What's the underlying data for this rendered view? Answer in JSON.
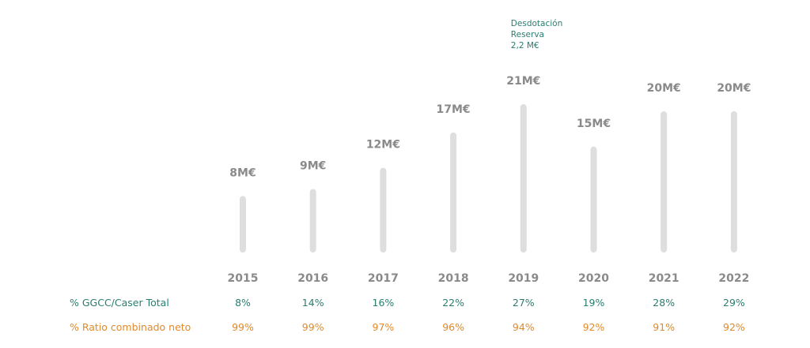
{
  "chart_data": {
    "type": "bar",
    "categories": [
      "2015",
      "2016",
      "2017",
      "2018",
      "2019",
      "2020",
      "2021",
      "2022"
    ],
    "values": [
      8,
      9,
      12,
      17,
      21,
      15,
      20,
      20
    ],
    "value_labels": [
      "8M€",
      "9M€",
      "12M€",
      "17M€",
      "21M€",
      "15M€",
      "20M€",
      "20M€"
    ],
    "unit": "M€",
    "ylim": [
      0,
      21
    ],
    "grid": false,
    "bar_color": "#dedede",
    "annotation": {
      "category": "2019",
      "lines": [
        "Desdotación",
        "Reserva",
        "2,2 M€"
      ],
      "color": "#2a7d6f"
    },
    "rows": [
      {
        "label": "% GGCC/Caser Total",
        "color": "#2a7d6f",
        "values": [
          "8%",
          "14%",
          "16%",
          "22%",
          "27%",
          "19%",
          "28%",
          "29%"
        ]
      },
      {
        "label": "% Ratio combinado neto",
        "color": "#e08a2c",
        "values": [
          "99%",
          "99%",
          "97%",
          "96%",
          "94%",
          "92%",
          "91%",
          "92%"
        ]
      }
    ]
  }
}
